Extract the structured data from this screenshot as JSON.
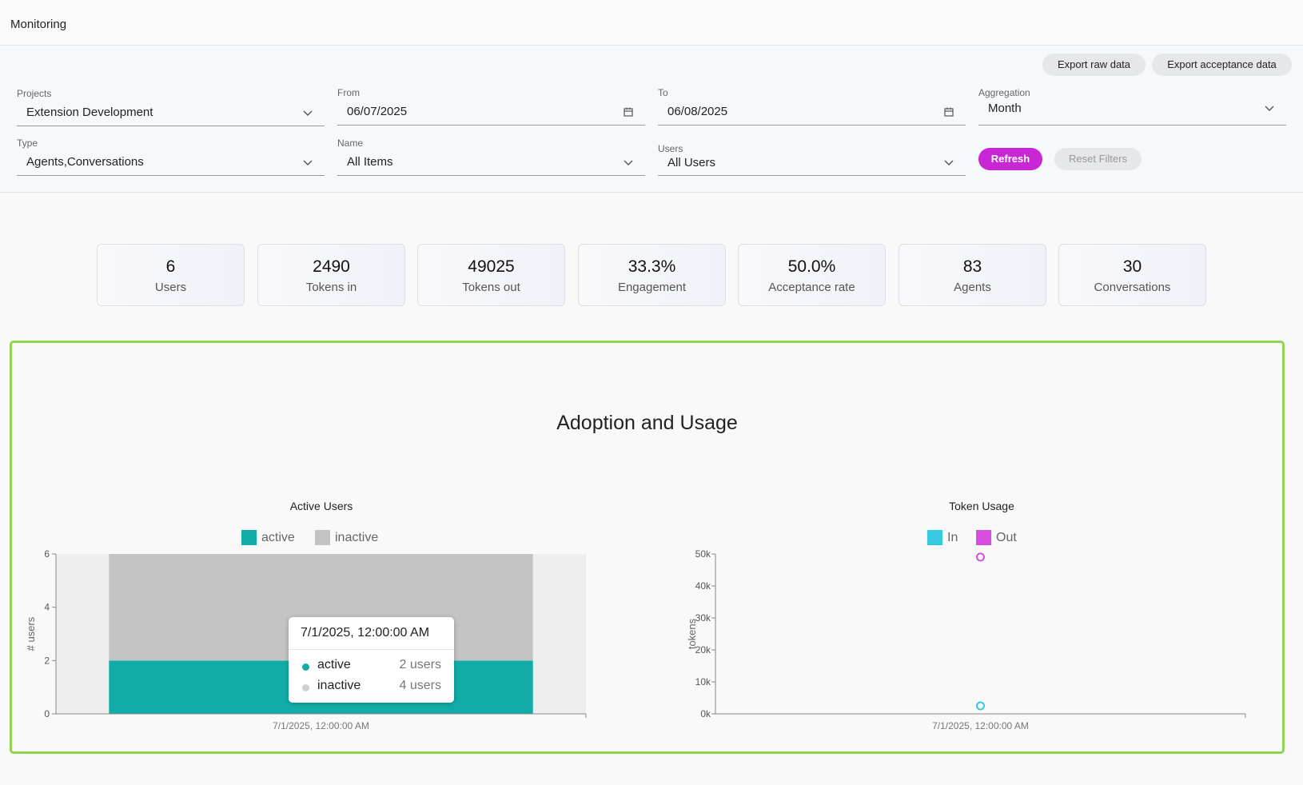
{
  "header": {
    "title": "Monitoring"
  },
  "actions": {
    "export_raw": "Export raw data",
    "export_acceptance": "Export acceptance data"
  },
  "filters": {
    "projects": {
      "label": "Projects",
      "value": "Extension Development"
    },
    "from": {
      "label": "From",
      "value": "06/07/2025"
    },
    "to": {
      "label": "To",
      "value": "06/08/2025"
    },
    "aggregation": {
      "label": "Aggregation",
      "value": "Month"
    },
    "type": {
      "label": "Type",
      "value": "Agents,Conversations"
    },
    "name": {
      "label": "Name",
      "value": "All Items"
    },
    "users": {
      "label": "Users",
      "value": "All Users"
    },
    "refresh": "Refresh",
    "reset": "Reset Filters"
  },
  "stats": [
    {
      "value": "6",
      "label": "Users"
    },
    {
      "value": "2490",
      "label": "Tokens in"
    },
    {
      "value": "49025",
      "label": "Tokens out"
    },
    {
      "value": "33.3%",
      "label": "Engagement"
    },
    {
      "value": "50.0%",
      "label": "Acceptance rate"
    },
    {
      "value": "83",
      "label": "Agents"
    },
    {
      "value": "30",
      "label": "Conversations"
    }
  ],
  "section": {
    "title": "Adoption and Usage"
  },
  "colors": {
    "accent": "#c926d6",
    "active": "#11aca7",
    "inactive": "#c4c4c4",
    "in": "#35c9e0",
    "out": "#d64ee0",
    "frame": "#8ed451"
  },
  "chart_data": [
    {
      "type": "bar",
      "title": "Active Users",
      "ylabel": "# users",
      "categories": [
        "7/1/2025, 12:00:00 AM"
      ],
      "series": [
        {
          "name": "active",
          "values": [
            2
          ]
        },
        {
          "name": "inactive",
          "values": [
            4
          ]
        }
      ],
      "stacked": true,
      "ylim": [
        0,
        6
      ],
      "yticks": [
        "0",
        "2",
        "4",
        "6"
      ],
      "legend": "top-center"
    },
    {
      "type": "scatter",
      "title": "Token Usage",
      "ylabel": "tokens",
      "categories": [
        "7/1/2025, 12:00:00 AM"
      ],
      "series": [
        {
          "name": "In",
          "values": [
            2490
          ]
        },
        {
          "name": "Out",
          "values": [
            49025
          ]
        }
      ],
      "ylim": [
        0,
        50000
      ],
      "yticks": [
        "0k",
        "10k",
        "20k",
        "30k",
        "40k",
        "50k"
      ],
      "legend": "top-center"
    }
  ],
  "tooltip": {
    "header": "7/1/2025, 12:00:00 AM",
    "rows": [
      {
        "name": "active",
        "value": "2 users"
      },
      {
        "name": "inactive",
        "value": "4 users"
      }
    ]
  }
}
